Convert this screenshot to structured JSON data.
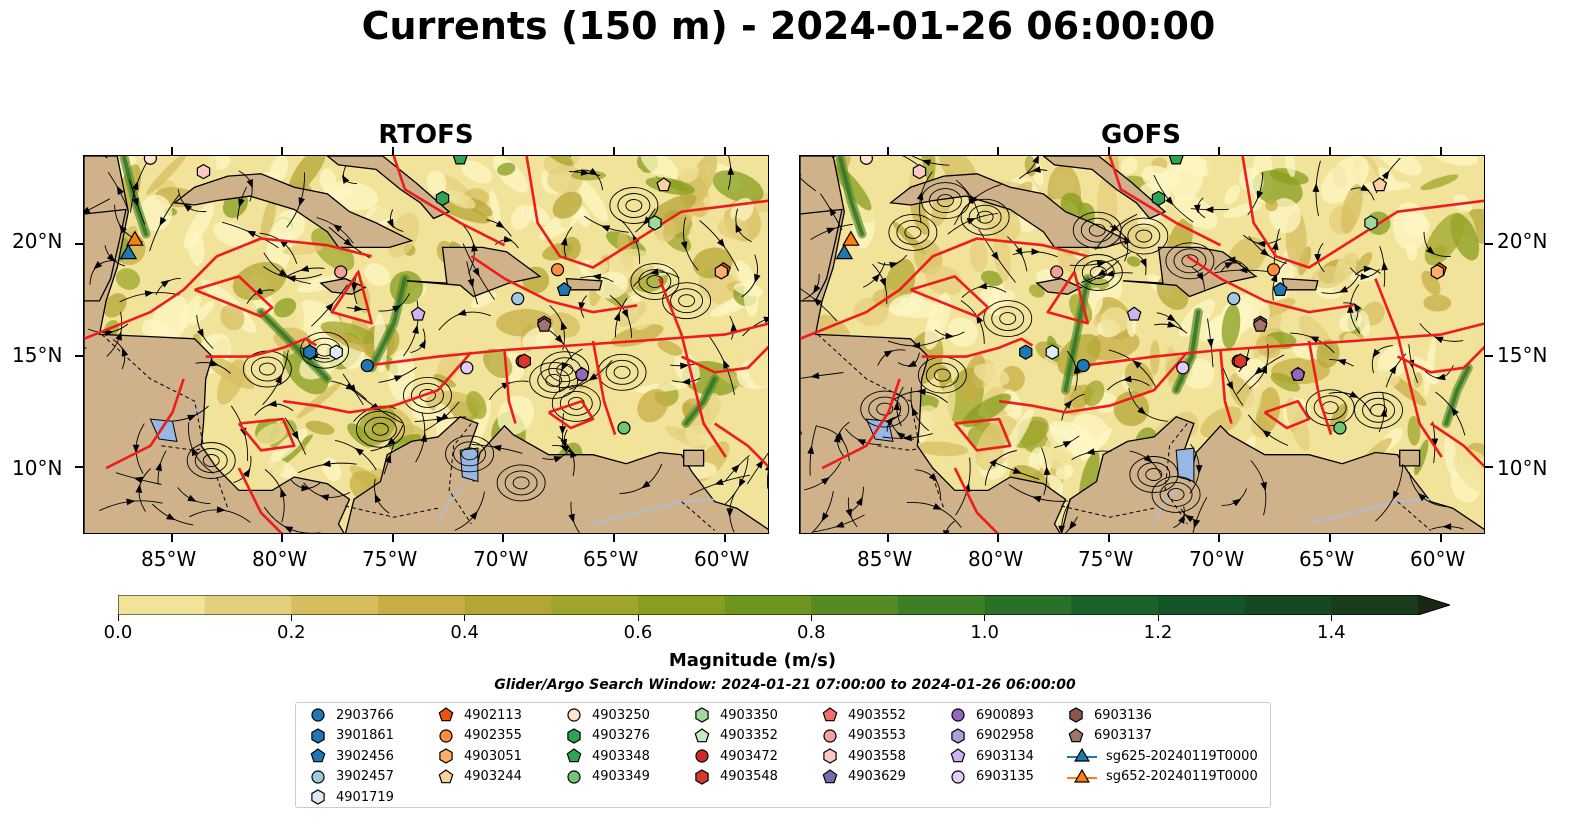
{
  "title": "Currents (150 m) - 2024-01-26 06:00:00",
  "panels": [
    {
      "title": "RTOFS"
    },
    {
      "title": "GOFS"
    }
  ],
  "map_axes": {
    "lat_labels": [
      "20°N",
      "15°N",
      "10°N"
    ],
    "lon_labels": [
      "85°W",
      "80°W",
      "75°W",
      "70°W",
      "65°W",
      "60°W"
    ],
    "lon_range_deg_w": [
      89,
      58
    ],
    "lat_range_deg_n": [
      7,
      24
    ]
  },
  "colorbar": {
    "label": "Magnitude (m/s)",
    "tick_labels": [
      "0.0",
      "0.2",
      "0.4",
      "0.6",
      "0.8",
      "1.0",
      "1.2",
      "1.4"
    ],
    "range": [
      0.0,
      1.5
    ],
    "extend": "max",
    "colors": [
      "#fdf7c4",
      "#f2e39a",
      "#e4cf7c",
      "#d5bd60",
      "#c6ae45",
      "#b4a635",
      "#9ea52a",
      "#879e1f",
      "#6e9520",
      "#558b22",
      "#3e7e25",
      "#2a7029",
      "#1b6129",
      "#155426",
      "#184820",
      "#1a3c1b",
      "#1b2f17",
      "#1b2614"
    ]
  },
  "search_window": "Glider/Argo Search Window: 2024-01-21 07:00:00 to 2024-01-26 06:00:00",
  "legend": {
    "columns": [
      [
        {
          "label": "2903766",
          "shape": "circle",
          "color": "#1f77b4"
        },
        {
          "label": "3901861",
          "shape": "hexagon",
          "color": "#1f77b4"
        },
        {
          "label": "3902456",
          "shape": "pentagon",
          "color": "#1f77b4"
        },
        {
          "label": "3902457",
          "shape": "circle",
          "color": "#9ecae1"
        },
        {
          "label": "4901719",
          "shape": "hexagon",
          "color": "#deebf7"
        }
      ],
      [
        {
          "label": "4902113",
          "shape": "pentagon",
          "color": "#e6550d"
        },
        {
          "label": "4902355",
          "shape": "circle",
          "color": "#fd8d3c"
        },
        {
          "label": "4903051",
          "shape": "hexagon",
          "color": "#fdae6b"
        },
        {
          "label": "4903244",
          "shape": "pentagon",
          "color": "#fdd0a2"
        }
      ],
      [
        {
          "label": "4903250",
          "shape": "circle",
          "color": "#fee6ce"
        },
        {
          "label": "4903276",
          "shape": "hexagon",
          "color": "#31a354"
        },
        {
          "label": "4903348",
          "shape": "pentagon",
          "color": "#31a354"
        },
        {
          "label": "4903349",
          "shape": "circle",
          "color": "#74c476"
        }
      ],
      [
        {
          "label": "4903350",
          "shape": "hexagon",
          "color": "#a1d99b"
        },
        {
          "label": "4903352",
          "shape": "pentagon",
          "color": "#c7e9c0"
        },
        {
          "label": "4903472",
          "shape": "circle",
          "color": "#d62728"
        },
        {
          "label": "4903548",
          "shape": "hexagon",
          "color": "#d6392c"
        }
      ],
      [
        {
          "label": "4903552",
          "shape": "pentagon",
          "color": "#f46d6d"
        },
        {
          "label": "4903553",
          "shape": "circle",
          "color": "#f4a09b"
        },
        {
          "label": "4903558",
          "shape": "hexagon",
          "color": "#fcc9c5"
        },
        {
          "label": "4903629",
          "shape": "pentagon",
          "color": "#756bb1"
        }
      ],
      [
        {
          "label": "6900893",
          "shape": "circle",
          "color": "#9467bd"
        },
        {
          "label": "6902958",
          "shape": "hexagon",
          "color": "#b39ddb"
        },
        {
          "label": "6903134",
          "shape": "pentagon",
          "color": "#cdb4f0"
        },
        {
          "label": "6903135",
          "shape": "circle",
          "color": "#e4ccfa"
        }
      ],
      [
        {
          "label": "6903136",
          "shape": "hexagon",
          "color": "#8c564b"
        },
        {
          "label": "6903137",
          "shape": "pentagon",
          "color": "#a0746a"
        },
        {
          "label": "sg625-20240119T0000",
          "shape": "triangle-line",
          "color": "#1f77b4"
        },
        {
          "label": "sg652-20240119T0000",
          "shape": "triangle-line",
          "color": "#ff7f0e"
        }
      ]
    ]
  },
  "floats_on_map": [
    {
      "id": "2903766",
      "lon": -76.2,
      "lat": 14.6
    },
    {
      "id": "3901861",
      "lon": -78.8,
      "lat": 15.2
    },
    {
      "id": "3902456",
      "lon": -67.3,
      "lat": 18.0
    },
    {
      "id": "3902457",
      "lon": -69.4,
      "lat": 17.6
    },
    {
      "id": "4901719",
      "lon": -77.6,
      "lat": 15.2
    },
    {
      "id": "4902113",
      "lon": -60.1,
      "lat": 18.9
    },
    {
      "id": "4902355",
      "lon": -67.6,
      "lat": 18.9
    },
    {
      "id": "4903051",
      "lon": -60.2,
      "lat": 18.8
    },
    {
      "id": "4903244",
      "lon": -62.8,
      "lat": 22.7
    },
    {
      "id": "4903250",
      "lon": -86.0,
      "lat": 23.9
    },
    {
      "id": "4903276",
      "lon": -72.8,
      "lat": 22.1
    },
    {
      "id": "4903348",
      "lon": -72.0,
      "lat": 23.9
    },
    {
      "id": "4903349",
      "lon": -64.6,
      "lat": 11.8
    },
    {
      "id": "4903350",
      "lon": -63.2,
      "lat": 21.0
    },
    {
      "id": "4903472",
      "lon": -69.2,
      "lat": 14.8
    },
    {
      "id": "4903548",
      "lon": -69.1,
      "lat": 14.8
    },
    {
      "id": "4903553",
      "lon": -77.4,
      "lat": 18.8
    },
    {
      "id": "4903558",
      "lon": -83.6,
      "lat": 23.3
    },
    {
      "id": "4903629",
      "lon": -66.5,
      "lat": 14.2
    },
    {
      "id": "6900893",
      "lon": -66.5,
      "lat": 14.2
    },
    {
      "id": "6903134",
      "lon": -73.9,
      "lat": 16.9
    },
    {
      "id": "6903135",
      "lon": -71.7,
      "lat": 14.5
    },
    {
      "id": "6903136",
      "lon": -68.2,
      "lat": 16.5
    },
    {
      "id": "6903137",
      "lon": -68.2,
      "lat": 16.4
    },
    {
      "id": "sg625-20240119T0000",
      "lon": -87.0,
      "lat": 19.6
    },
    {
      "id": "sg652-20240119T0000",
      "lon": -86.7,
      "lat": 20.2
    }
  ]
}
